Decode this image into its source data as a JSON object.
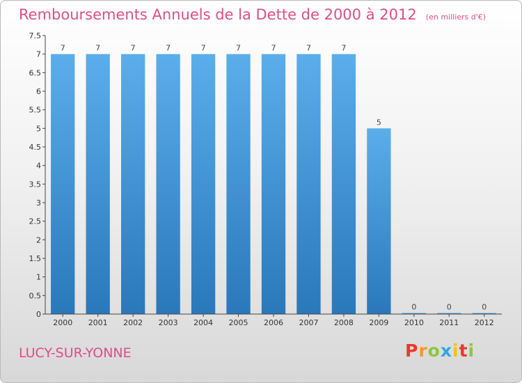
{
  "title": "Remboursements Annuels de la Dette de 2000 à 2012",
  "subtitle": "(en milliers d'€)",
  "city": "LUCY-SUR-YONNE",
  "logo": {
    "letters": [
      "P",
      "r",
      "o",
      "x",
      "i",
      "t",
      "i"
    ],
    "colors": [
      "#e63a2e",
      "#f39c1f",
      "#8cc63f",
      "#2fa8e0",
      "#f4c20d",
      "#e63a2e",
      "#8cc63f"
    ]
  },
  "chart_data": {
    "type": "bar",
    "title": "Remboursements Annuels de la Dette de 2000 à 2012",
    "subtitle": "(en milliers d'€)",
    "categories": [
      "2000",
      "2001",
      "2002",
      "2003",
      "2004",
      "2005",
      "2006",
      "2007",
      "2008",
      "2009",
      "2010",
      "2011",
      "2012"
    ],
    "values": [
      7,
      7,
      7,
      7,
      7,
      7,
      7,
      7,
      7,
      5,
      0,
      0,
      0
    ],
    "data_labels": [
      "7",
      "7",
      "7",
      "7",
      "7",
      "7",
      "7",
      "7",
      "7",
      "5",
      "0",
      "0",
      "0"
    ],
    "ylim": [
      0,
      7.5
    ],
    "yticks": [
      "0",
      "0.5",
      "1",
      "1.5",
      "2",
      "2.5",
      "3",
      "3.5",
      "4",
      "4.5",
      "5",
      "5.5",
      "6",
      "6.5",
      "7",
      "7.5"
    ],
    "bar_color": "#3d8fd3",
    "grid": false
  }
}
